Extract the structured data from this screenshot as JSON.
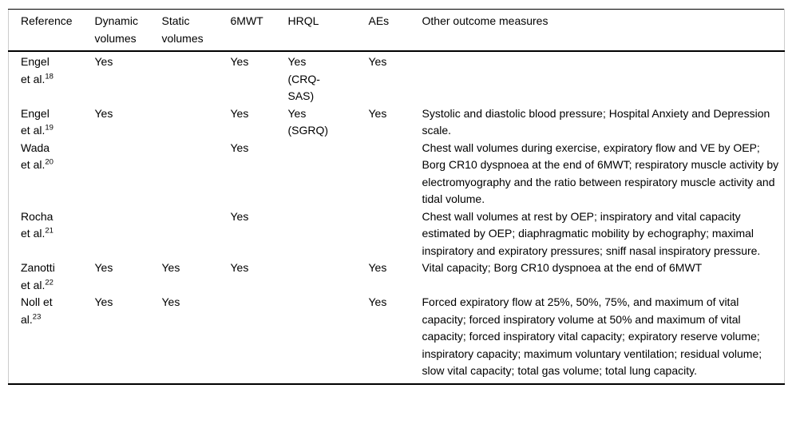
{
  "page": {
    "background": "#ffffff",
    "text_color": "#000000",
    "rule_color": "#000000",
    "frame_color": "#cccccc"
  },
  "table": {
    "columns": [
      "Reference",
      "Dynamic volumes",
      "Static volumes",
      "6MWT",
      "HRQL",
      "AEs",
      "Other outcome measures"
    ],
    "rows": [
      {
        "ref_line1": "Engel",
        "ref_line2": "et al.",
        "ref_sup": "18",
        "dynamic_volumes": "Yes",
        "static_volumes": "",
        "six_mwt": "Yes",
        "hrql": "Yes\n(CRQ-\nSAS)",
        "aes": "Yes",
        "other": ""
      },
      {
        "ref_line1": "Engel",
        "ref_line2": "et al.",
        "ref_sup": "19",
        "dynamic_volumes": "Yes",
        "static_volumes": "",
        "six_mwt": "Yes",
        "hrql": "Yes\n(SGRQ)",
        "aes": "Yes",
        "other": "Systolic and diastolic blood pressure; Hospital Anxiety and Depression scale."
      },
      {
        "ref_line1": "Wada",
        "ref_line2": "et al.",
        "ref_sup": "20",
        "dynamic_volumes": "",
        "static_volumes": "",
        "six_mwt": "Yes",
        "hrql": "",
        "aes": "",
        "other": "Chest wall volumes during exercise, expiratory flow and VE by OEP; Borg CR10 dyspnoea at the end of 6MWT; respiratory muscle activity by electromyography and the ratio between respiratory muscle activity and tidal volume."
      },
      {
        "ref_line1": "Rocha",
        "ref_line2": "et al.",
        "ref_sup": "21",
        "dynamic_volumes": "",
        "static_volumes": "",
        "six_mwt": "Yes",
        "hrql": "",
        "aes": "",
        "other": "Chest wall volumes at rest by OEP; inspiratory and vital capacity estimated by OEP; diaphragmatic mobility by echography; maximal inspiratory and expiratory pressures; sniff nasal inspiratory pressure."
      },
      {
        "ref_line1": "Zanotti",
        "ref_line2": "et al.",
        "ref_sup": "22",
        "dynamic_volumes": "Yes",
        "static_volumes": "Yes",
        "six_mwt": "Yes",
        "hrql": "",
        "aes": "Yes",
        "other": "Vital capacity; Borg CR10 dyspnoea at the end of 6MWT"
      },
      {
        "ref_line1": "Noll et",
        "ref_line2": "al.",
        "ref_sup": "23",
        "dynamic_volumes": "Yes",
        "static_volumes": "Yes",
        "six_mwt": "",
        "hrql": "",
        "aes": "Yes",
        "other": "Forced expiratory flow at 25%, 50%, 75%, and maximum of vital capacity; forced inspiratory volume at 50% and maximum of vital capacity; forced inspiratory vital capacity; expiratory reserve volume; inspiratory capacity; maximum voluntary ventilation; residual volume; slow vital capacity; total gas volume; total lung capacity."
      }
    ]
  }
}
